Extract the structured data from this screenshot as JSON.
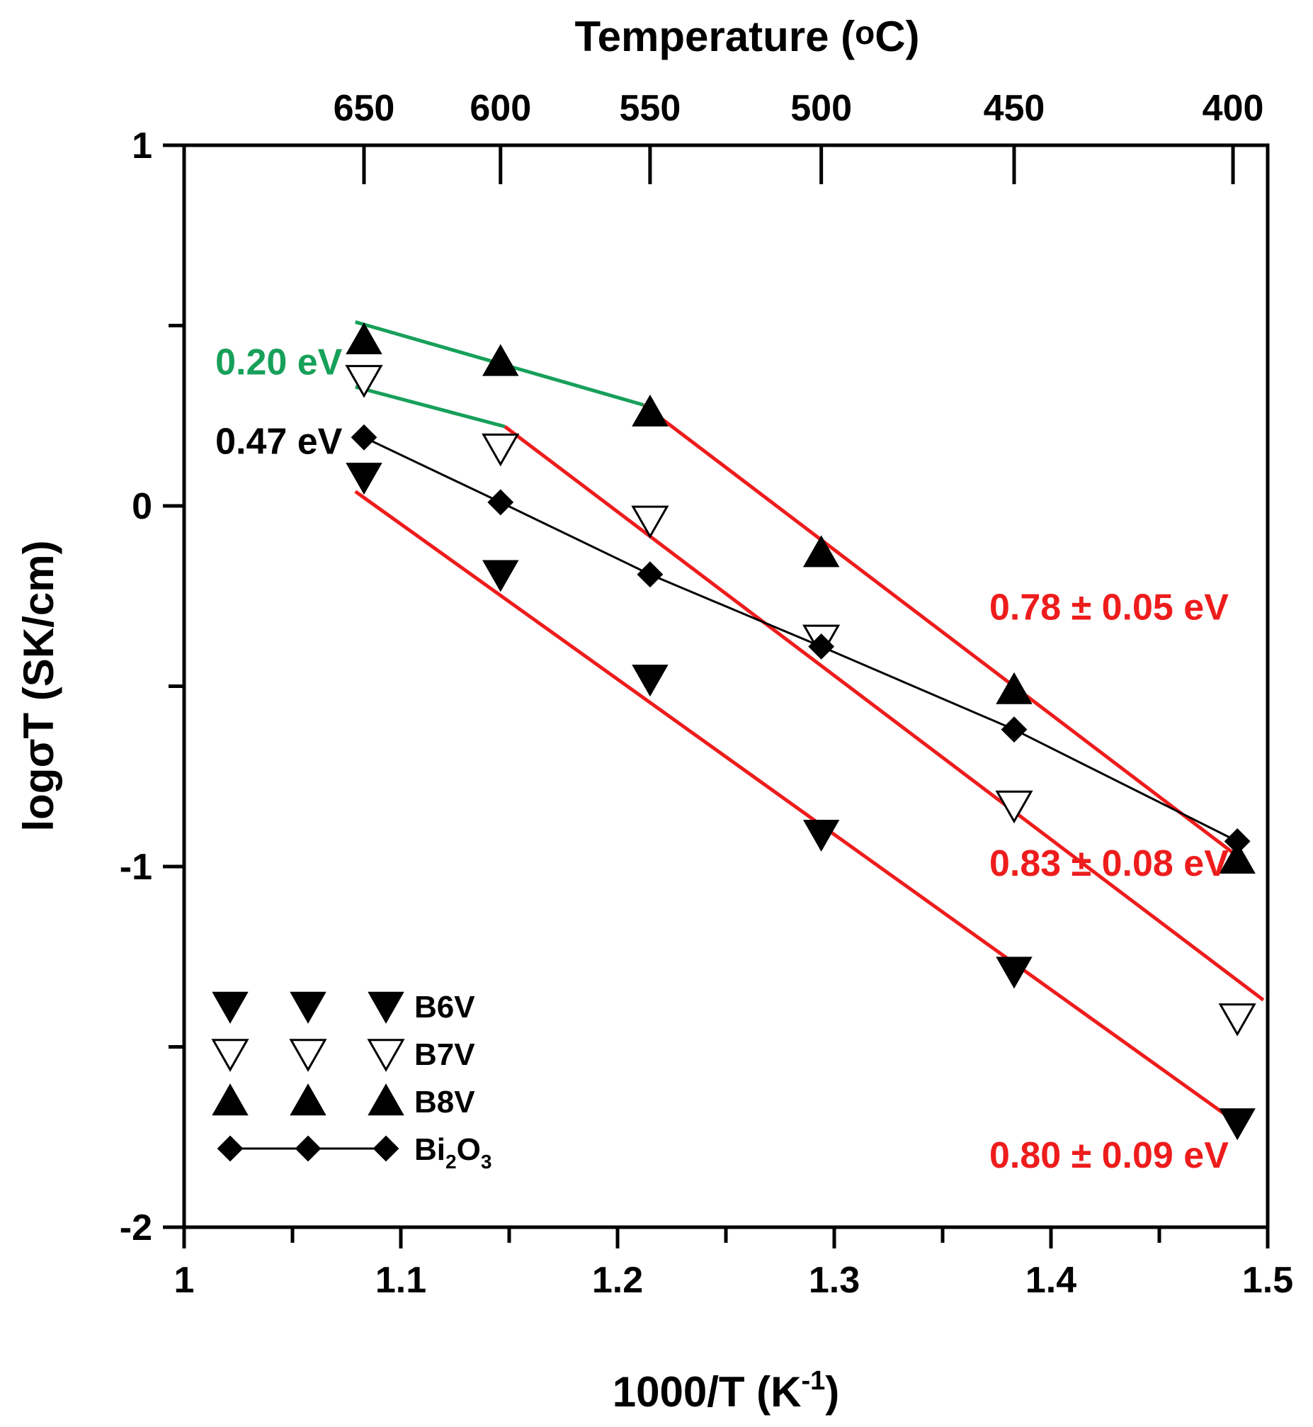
{
  "chart_data": {
    "type": "scatter",
    "title": "",
    "xlabel": "1000/T (K",
    "xlabel_sup": "-1",
    "xlabel_end": ")",
    "ylabel": "logσT (SK/cm)",
    "top_xlabel": "Temperature (",
    "top_xlabel_sup": "o",
    "top_xlabel_end": "C)",
    "xlim": [
      1.0,
      1.5
    ],
    "ylim": [
      -2,
      1
    ],
    "x_ticks": [
      1,
      1.1,
      1.2,
      1.3,
      1.4,
      1.5
    ],
    "x_tick_labels": [
      "1",
      "1.1",
      "1.2",
      "1.3",
      "1.4",
      "1.5"
    ],
    "y_ticks": [
      1,
      0,
      -1,
      -2
    ],
    "y_tick_labels": [
      "1",
      "0",
      "-1",
      "-2"
    ],
    "top_ticks": [
      {
        "label": "650",
        "x": 1.083
      },
      {
        "label": "600",
        "x": 1.146
      },
      {
        "label": "550",
        "x": 1.215
      },
      {
        "label": "500",
        "x": 1.294
      },
      {
        "label": "450",
        "x": 1.383
      },
      {
        "label": "400",
        "x": 1.484
      }
    ],
    "series": [
      {
        "name": "B6V",
        "marker": "triangle-down-filled",
        "x": [
          1.083,
          1.146,
          1.215,
          1.294,
          1.383,
          1.486
        ],
        "y": [
          0.08,
          -0.19,
          -0.48,
          -0.91,
          -1.29,
          -1.71
        ]
      },
      {
        "name": "B7V",
        "marker": "triangle-down-open",
        "x": [
          1.083,
          1.146,
          1.215,
          1.294,
          1.383,
          1.486
        ],
        "y": [
          0.35,
          0.16,
          -0.04,
          -0.37,
          -0.83,
          -1.42
        ]
      },
      {
        "name": "B8V",
        "marker": "triangle-up-filled",
        "x": [
          1.083,
          1.146,
          1.215,
          1.294,
          1.383,
          1.486
        ],
        "y": [
          0.46,
          0.4,
          0.26,
          -0.13,
          -0.51,
          -0.98
        ]
      },
      {
        "name": "Bi",
        "name_sub1": "2",
        "name_mid": "O",
        "name_sub2": "3",
        "marker": "diamond-filled",
        "connected": true,
        "x": [
          1.083,
          1.146,
          1.215,
          1.294,
          1.383,
          1.486
        ],
        "y": [
          0.19,
          0.01,
          -0.19,
          -0.39,
          -0.62,
          -0.93
        ]
      }
    ],
    "fit_lines": [
      {
        "name": "B8V high-T fit",
        "color": "#17a05a",
        "x": [
          1.079,
          1.212
        ],
        "y": [
          0.51,
          0.28
        ]
      },
      {
        "name": "B7V high-T fit",
        "color": "#17a05a",
        "x": [
          1.079,
          1.148
        ],
        "y": [
          0.33,
          0.22
        ]
      },
      {
        "name": "B8V low-T fit",
        "color": "#ee1c1c",
        "x": [
          1.212,
          1.488
        ],
        "y": [
          0.28,
          -0.98
        ]
      },
      {
        "name": "B7V low-T fit",
        "color": "#ee1c1c",
        "x": [
          1.148,
          1.498
        ],
        "y": [
          0.22,
          -1.37
        ]
      },
      {
        "name": "B6V fit",
        "color": "#ee1c1c",
        "x": [
          1.079,
          1.488
        ],
        "y": [
          0.04,
          -1.72
        ]
      }
    ],
    "annotations": [
      {
        "text": "0.20 eV",
        "color": "#17a05a",
        "x": 1.073,
        "y": 0.4,
        "anchor": "end"
      },
      {
        "text": "0.47 eV",
        "color": "#000000",
        "x": 1.073,
        "y": 0.18,
        "anchor": "end"
      },
      {
        "text": "0.78 ± 0.05 eV",
        "color": "#ee1c1c",
        "x": 1.482,
        "y": -0.28,
        "anchor": "end"
      },
      {
        "text": "0.83 ± 0.08 eV",
        "color": "#ee1c1c",
        "x": 1.482,
        "y": -0.99,
        "anchor": "end"
      },
      {
        "text": "0.80 ± 0.09 eV",
        "color": "#ee1c1c",
        "x": 1.482,
        "y": -1.8,
        "anchor": "end"
      }
    ],
    "legend_placement": "bottom-left",
    "grid": false
  }
}
